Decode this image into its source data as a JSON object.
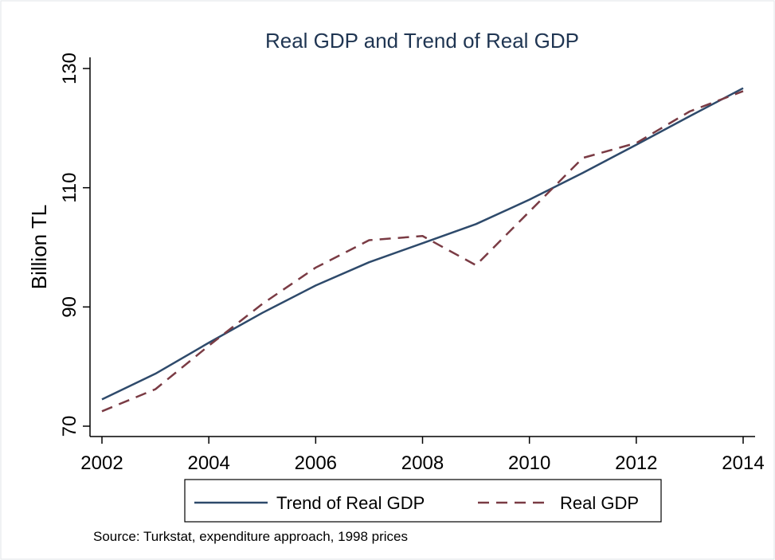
{
  "chart_data": {
    "type": "line",
    "title": "Real GDP and Trend of Real GDP",
    "xlabel": "",
    "ylabel": "Billion TL",
    "note": "Source: Turkstat, expenditure approach, 1998 prices",
    "x": [
      2002,
      2003,
      2004,
      2005,
      2006,
      2007,
      2008,
      2009,
      2010,
      2011,
      2012,
      2013,
      2014
    ],
    "x_ticks": [
      "2002",
      "2004",
      "2006",
      "2008",
      "2010",
      "2012",
      "2014"
    ],
    "y_ticks": [
      "70",
      "90",
      "110",
      "130"
    ],
    "xlim": [
      2002,
      2014
    ],
    "ylim": [
      70,
      130
    ],
    "grid": false,
    "legend_position": "bottom",
    "series": [
      {
        "name": "Trend of Real GDP",
        "color": "#2e4a6b",
        "style": "solid",
        "values": [
          74.5,
          78.8,
          84.0,
          89.0,
          93.6,
          97.5,
          100.7,
          103.9,
          108.0,
          112.5,
          117.2,
          122.0,
          126.7
        ]
      },
      {
        "name": "Real GDP",
        "color": "#7a3b44",
        "style": "dashed",
        "values": [
          72.5,
          76.2,
          83.5,
          90.5,
          96.6,
          101.2,
          101.9,
          97.0,
          106.0,
          115.0,
          117.5,
          122.8,
          126.2
        ]
      }
    ]
  }
}
